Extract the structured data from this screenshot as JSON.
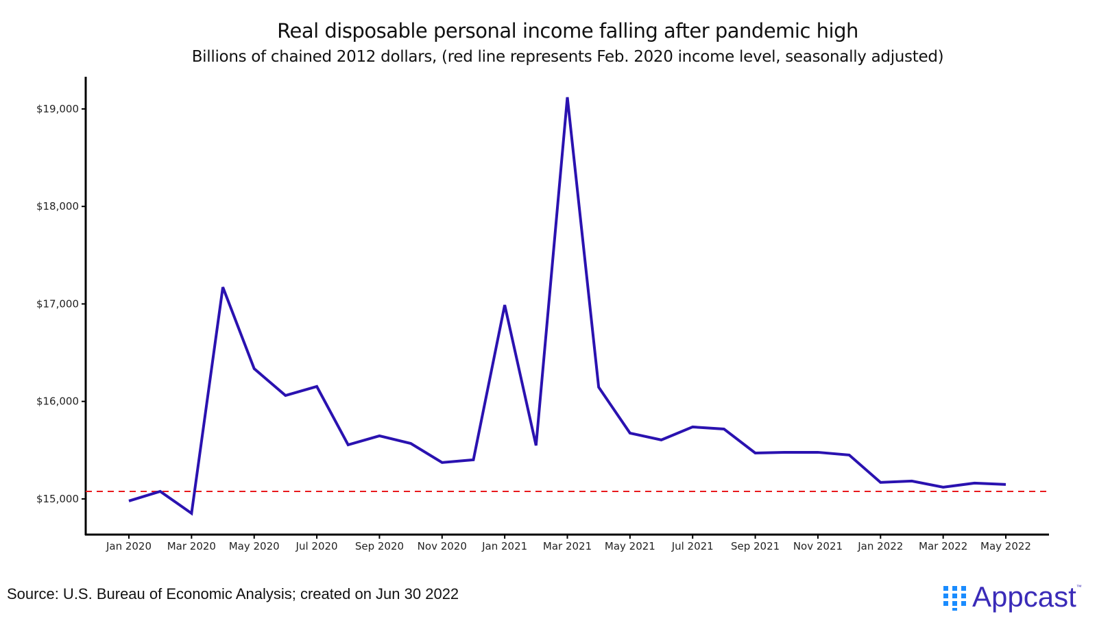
{
  "chart_data": {
    "type": "line",
    "title": "Real disposable personal income falling after pandemic high",
    "subtitle": "Billions of chained 2012 dollars, (red line represents Feb. 2020 income level, seasonally adjusted)",
    "xlabel": "",
    "ylabel": "",
    "x": [
      "Jan 2020",
      "Feb 2020",
      "Mar 2020",
      "Apr 2020",
      "May 2020",
      "Jun 2020",
      "Jul 2020",
      "Aug 2020",
      "Sep 2020",
      "Oct 2020",
      "Nov 2020",
      "Dec 2020",
      "Jan 2021",
      "Feb 2021",
      "Mar 2021",
      "Apr 2021",
      "May 2021",
      "Jun 2021",
      "Jul 2021",
      "Aug 2021",
      "Sep 2021",
      "Oct 2021",
      "Nov 2021",
      "Dec 2021",
      "Jan 2022",
      "Feb 2022",
      "Mar 2022",
      "Apr 2022",
      "May 2022"
    ],
    "series": [
      {
        "name": "Real disposable personal income",
        "color": "#2a12b0",
        "values": [
          14979,
          15077,
          14852,
          17172,
          16336,
          16061,
          16153,
          15555,
          15647,
          15569,
          15373,
          15401,
          16989,
          15548,
          19120,
          16146,
          15675,
          15605,
          15738,
          15717,
          15471,
          15478,
          15478,
          15450,
          15169,
          15183,
          15120,
          15162,
          15148
        ]
      }
    ],
    "reference_line": {
      "value": 15077,
      "label": "Feb. 2020 income level",
      "color": "#e8191c",
      "style": "dashed"
    },
    "x_tick_labels": [
      "Jan 2020",
      "Mar 2020",
      "May 2020",
      "Jul 2020",
      "Sep 2020",
      "Nov 2020",
      "Jan 2021",
      "Mar 2021",
      "May 2021",
      "Jul 2021",
      "Sep 2021",
      "Nov 2021",
      "Jan 2022",
      "Mar 2022",
      "May 2022"
    ],
    "y_ticks": [
      15000,
      16000,
      17000,
      18000,
      19000
    ],
    "y_tick_labels": [
      "$15,000",
      "$16,000",
      "$17,000",
      "$18,000",
      "$19,000"
    ],
    "ylim": [
      14634,
      19330
    ],
    "grid": false,
    "legend": "none"
  },
  "source": "Source: U.S. Bureau of Economic Analysis; created on Jun 30 2022",
  "logo": {
    "text": "Appcast",
    "tm": "™",
    "color": "#3a2bb8",
    "icon_color": "#1a8cff"
  }
}
